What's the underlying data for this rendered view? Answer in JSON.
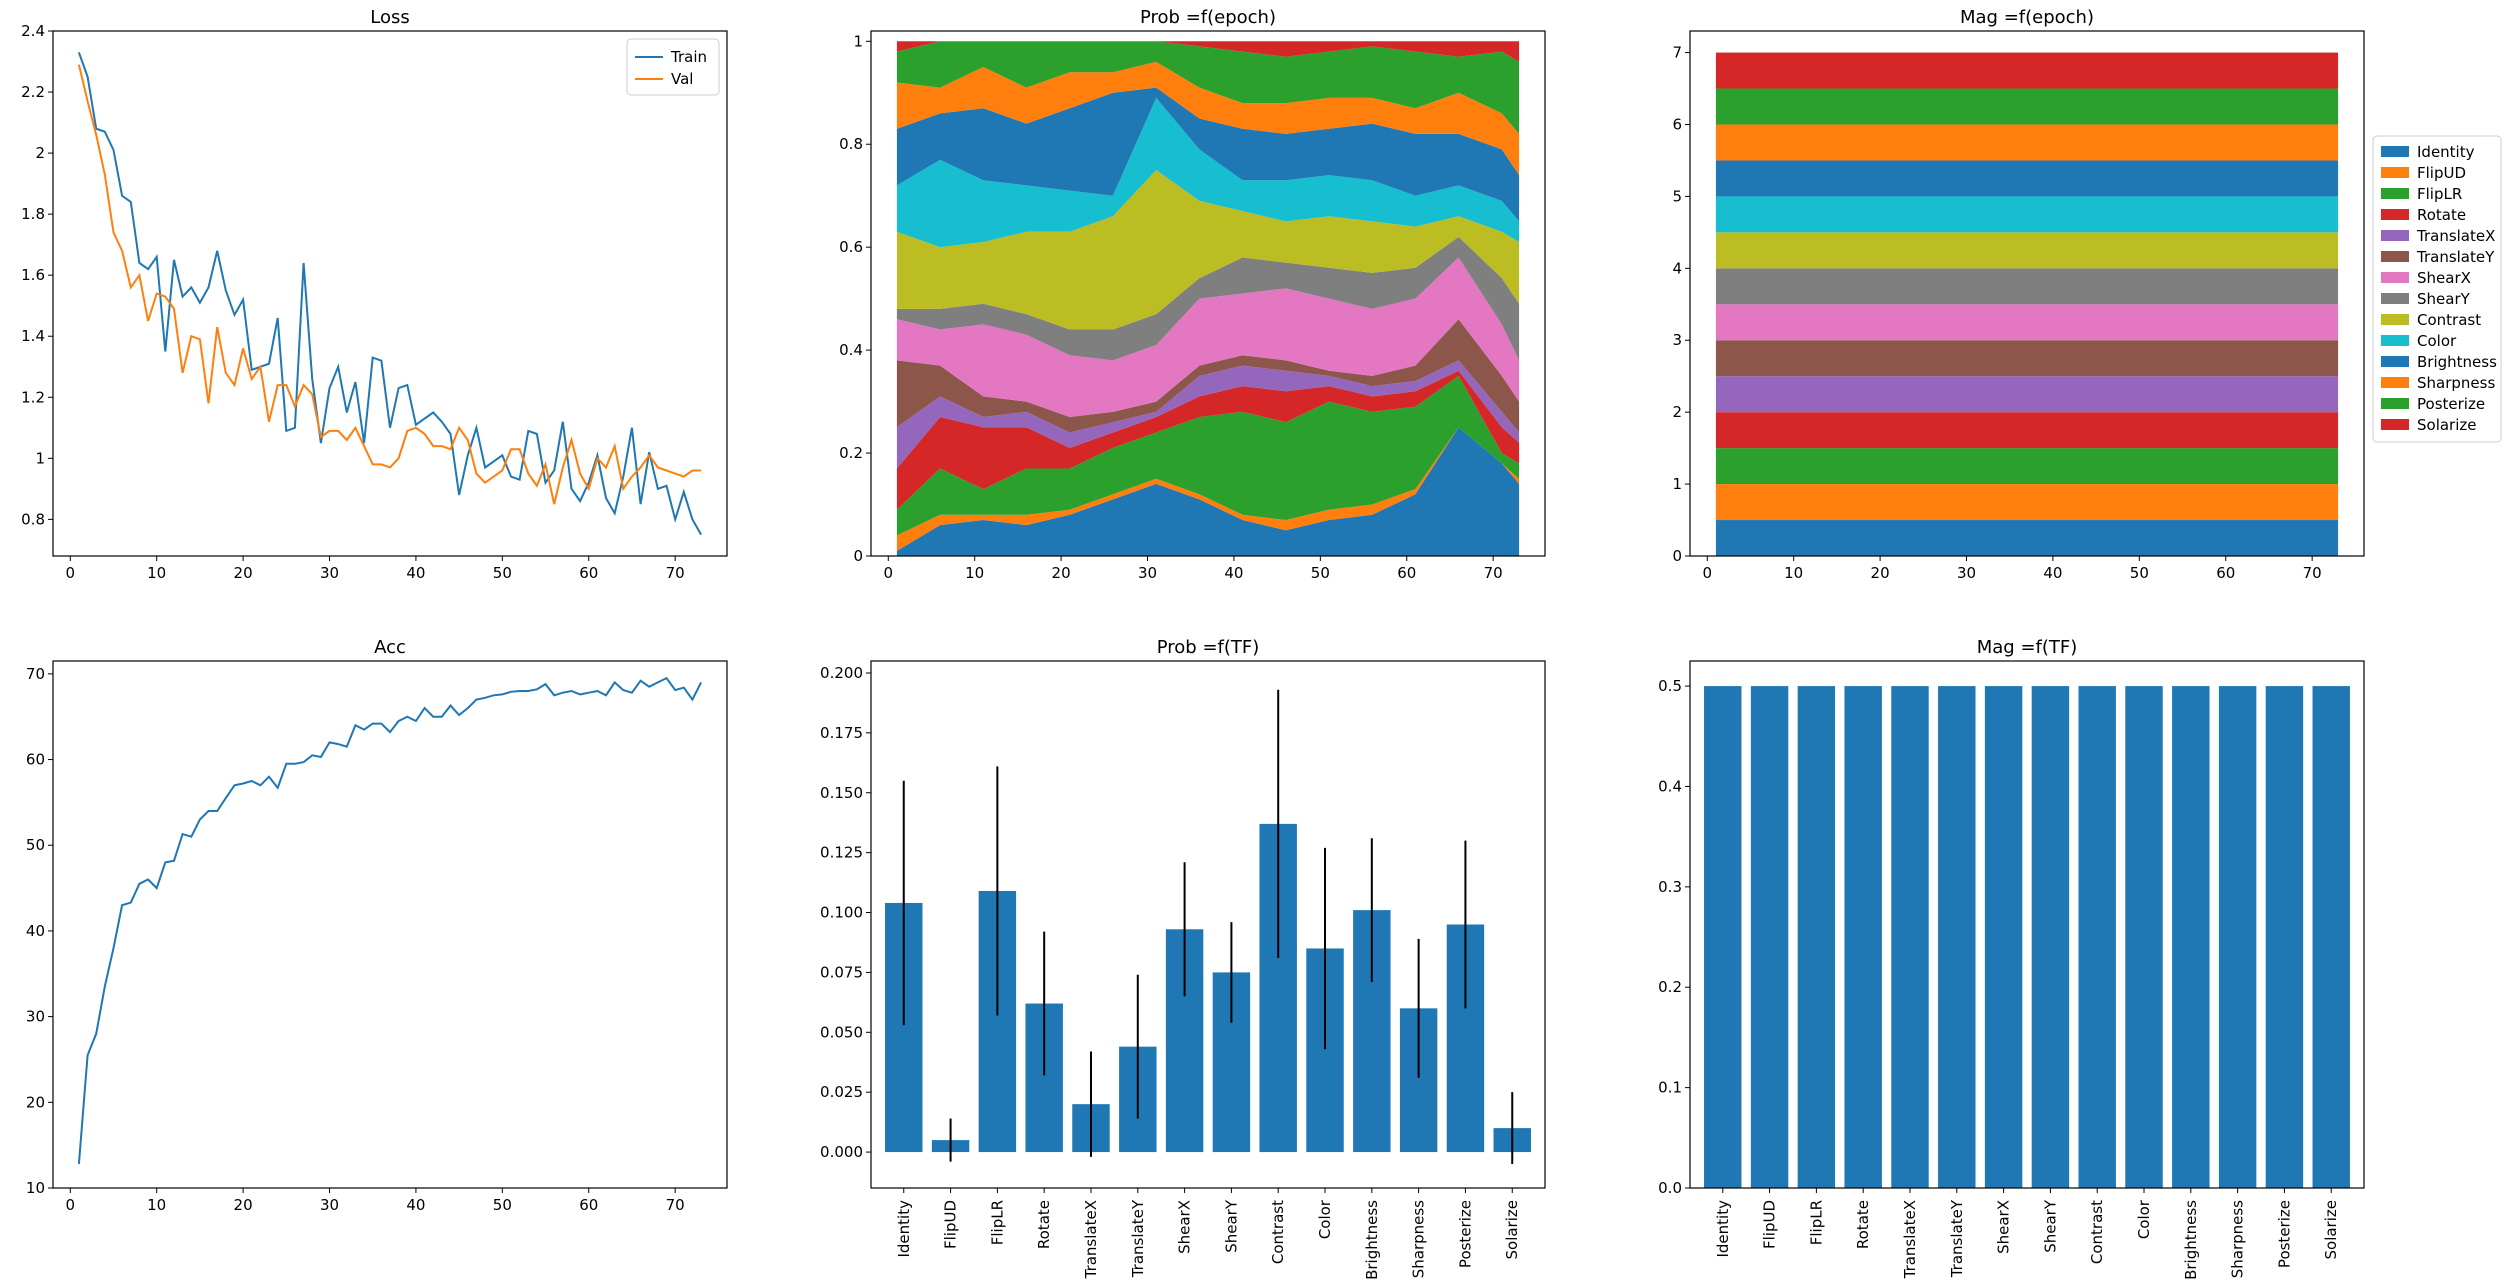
{
  "chart_data": [
    {
      "type": "line",
      "title": "Loss",
      "xlim": [
        -2,
        76
      ],
      "ylim": [
        0.68,
        2.4
      ],
      "xticks": [
        0,
        10,
        20,
        30,
        40,
        50,
        60,
        70
      ],
      "yticks": [
        0.8,
        1.0,
        1.2,
        1.4,
        1.6,
        1.8,
        2.0,
        2.2,
        2.4
      ],
      "legend": "top-right",
      "series": [
        {
          "name": "Train",
          "color": "#1f77b4",
          "x_start": 1,
          "values": [
            2.33,
            2.25,
            2.08,
            2.07,
            2.01,
            1.86,
            1.84,
            1.64,
            1.62,
            1.66,
            1.35,
            1.65,
            1.53,
            1.56,
            1.51,
            1.56,
            1.68,
            1.55,
            1.47,
            1.52,
            1.29,
            1.3,
            1.31,
            1.46,
            1.09,
            1.1,
            1.64,
            1.26,
            1.05,
            1.23,
            1.3,
            1.15,
            1.25,
            1.05,
            1.33,
            1.32,
            1.1,
            1.23,
            1.24,
            1.11,
            1.13,
            1.15,
            1.12,
            1.08,
            0.88,
            1.01,
            1.1,
            0.97,
            0.99,
            1.01,
            0.94,
            0.93,
            1.09,
            1.08,
            0.92,
            0.96,
            1.12,
            0.9,
            0.86,
            0.92,
            1.01,
            0.87,
            0.82,
            0.94,
            1.1,
            0.85,
            1.02,
            0.9,
            0.91,
            0.8,
            0.89,
            0.8,
            0.75
          ]
        },
        {
          "name": "Val",
          "color": "#ff7f0e",
          "x_start": 1,
          "values": [
            2.29,
            2.17,
            2.06,
            1.93,
            1.74,
            1.68,
            1.56,
            1.6,
            1.45,
            1.54,
            1.53,
            1.49,
            1.28,
            1.4,
            1.39,
            1.18,
            1.43,
            1.28,
            1.24,
            1.36,
            1.26,
            1.3,
            1.12,
            1.24,
            1.24,
            1.17,
            1.24,
            1.21,
            1.07,
            1.09,
            1.09,
            1.06,
            1.1,
            1.04,
            0.98,
            0.98,
            0.97,
            1.0,
            1.09,
            1.1,
            1.08,
            1.04,
            1.04,
            1.03,
            1.1,
            1.06,
            0.95,
            0.92,
            0.94,
            0.96,
            1.03,
            1.03,
            0.95,
            0.91,
            0.98,
            0.85,
            0.97,
            1.06,
            0.95,
            0.9,
            1.0,
            0.97,
            1.04,
            0.9,
            0.94,
            0.97,
            1.01,
            0.97,
            0.96,
            0.95,
            0.94,
            0.96,
            0.96
          ]
        }
      ]
    },
    {
      "type": "area",
      "title": "Prob =f(epoch)",
      "xlim": [
        -2,
        76
      ],
      "ylim": [
        0,
        1.02
      ],
      "xticks": [
        0,
        10,
        20,
        30,
        40,
        50,
        60,
        70
      ],
      "yticks": [
        0.0,
        0.2,
        0.4,
        0.6,
        0.8,
        1.0
      ],
      "x": [
        1,
        6,
        11,
        16,
        21,
        26,
        31,
        36,
        41,
        46,
        51,
        56,
        61,
        66,
        71,
        73
      ],
      "stacked_upper_bounds": [
        [
          0.01,
          0.06,
          0.07,
          0.06,
          0.08,
          0.11,
          0.14,
          0.11,
          0.07,
          0.05,
          0.07,
          0.08,
          0.12,
          0.25,
          0.18,
          0.14
        ],
        [
          0.04,
          0.08,
          0.08,
          0.08,
          0.09,
          0.12,
          0.15,
          0.12,
          0.08,
          0.07,
          0.09,
          0.1,
          0.13,
          0.25,
          0.18,
          0.15
        ],
        [
          0.09,
          0.17,
          0.13,
          0.17,
          0.17,
          0.21,
          0.24,
          0.27,
          0.28,
          0.26,
          0.3,
          0.28,
          0.29,
          0.35,
          0.2,
          0.18
        ],
        [
          0.17,
          0.27,
          0.25,
          0.25,
          0.21,
          0.24,
          0.27,
          0.31,
          0.33,
          0.32,
          0.33,
          0.31,
          0.32,
          0.36,
          0.25,
          0.22
        ],
        [
          0.25,
          0.31,
          0.27,
          0.28,
          0.24,
          0.26,
          0.28,
          0.35,
          0.37,
          0.36,
          0.35,
          0.33,
          0.34,
          0.38,
          0.28,
          0.24
        ],
        [
          0.38,
          0.37,
          0.31,
          0.3,
          0.27,
          0.28,
          0.3,
          0.37,
          0.39,
          0.38,
          0.36,
          0.35,
          0.37,
          0.46,
          0.35,
          0.3
        ],
        [
          0.46,
          0.44,
          0.45,
          0.43,
          0.39,
          0.38,
          0.41,
          0.5,
          0.51,
          0.52,
          0.5,
          0.48,
          0.5,
          0.58,
          0.45,
          0.38
        ],
        [
          0.48,
          0.48,
          0.49,
          0.47,
          0.44,
          0.44,
          0.47,
          0.54,
          0.58,
          0.57,
          0.56,
          0.55,
          0.56,
          0.62,
          0.54,
          0.49
        ],
        [
          0.63,
          0.6,
          0.61,
          0.63,
          0.63,
          0.66,
          0.75,
          0.69,
          0.67,
          0.65,
          0.66,
          0.65,
          0.64,
          0.66,
          0.63,
          0.61
        ],
        [
          0.72,
          0.77,
          0.73,
          0.72,
          0.71,
          0.7,
          0.89,
          0.79,
          0.73,
          0.73,
          0.74,
          0.73,
          0.7,
          0.72,
          0.69,
          0.65
        ],
        [
          0.83,
          0.86,
          0.87,
          0.84,
          0.87,
          0.9,
          0.91,
          0.85,
          0.83,
          0.82,
          0.83,
          0.84,
          0.82,
          0.82,
          0.79,
          0.74
        ],
        [
          0.92,
          0.91,
          0.95,
          0.91,
          0.94,
          0.94,
          0.96,
          0.91,
          0.88,
          0.88,
          0.89,
          0.89,
          0.87,
          0.9,
          0.86,
          0.82
        ],
        [
          0.98,
          1.0,
          1.0,
          1.0,
          1.0,
          1.0,
          1.0,
          0.99,
          0.98,
          0.97,
          0.98,
          0.99,
          0.98,
          0.97,
          0.98,
          0.96
        ],
        [
          1.0,
          1.0,
          1.0,
          1.0,
          1.0,
          1.0,
          1.0,
          1.0,
          1.0,
          1.0,
          1.0,
          1.0,
          1.0,
          1.0,
          1.0,
          1.0
        ]
      ]
    },
    {
      "type": "area",
      "title": "Mag =f(epoch)",
      "xlim": [
        -2,
        76
      ],
      "ylim": [
        0,
        7.3
      ],
      "xticks": [
        0,
        10,
        20,
        30,
        40,
        50,
        60,
        70
      ],
      "yticks": [
        0,
        1,
        2,
        3,
        4,
        5,
        6,
        7
      ],
      "x_range": [
        1,
        73
      ],
      "values_per_tf": 0.5,
      "legend": "outside-right"
    },
    {
      "type": "bar",
      "title": "Prob =f(TF)",
      "ylim": [
        -0.015,
        0.205
      ],
      "yticks": [
        0.0,
        0.025,
        0.05,
        0.075,
        0.1,
        0.125,
        0.15,
        0.175,
        0.2
      ],
      "yticklabels": [
        "0.000",
        "0.025",
        "0.050",
        "0.075",
        "0.100",
        "0.125",
        "0.150",
        "0.175",
        "0.200"
      ],
      "values": [
        0.104,
        0.005,
        0.109,
        0.062,
        0.02,
        0.044,
        0.093,
        0.075,
        0.137,
        0.085,
        0.101,
        0.06,
        0.095,
        0.01
      ],
      "errors": [
        0.051,
        0.009,
        0.052,
        0.03,
        0.022,
        0.03,
        0.028,
        0.021,
        0.056,
        0.042,
        0.03,
        0.029,
        0.035,
        0.015
      ],
      "color": "#1f77b4"
    },
    {
      "type": "bar",
      "title": "Mag =f(TF)",
      "ylim": [
        0,
        0.525
      ],
      "yticks": [
        0.0,
        0.1,
        0.2,
        0.3,
        0.4,
        0.5
      ],
      "yticklabels": [
        "0.0",
        "0.1",
        "0.2",
        "0.3",
        "0.4",
        "0.5"
      ],
      "values": [
        0.5,
        0.5,
        0.5,
        0.5,
        0.5,
        0.5,
        0.5,
        0.5,
        0.5,
        0.5,
        0.5,
        0.5,
        0.5,
        0.5
      ],
      "color": "#1f77b4"
    },
    {
      "type": "line",
      "title": "Acc",
      "xlim": [
        -2,
        76
      ],
      "ylim": [
        10,
        71.5
      ],
      "xticks": [
        0,
        10,
        20,
        30,
        40,
        50,
        60,
        70
      ],
      "yticks": [
        10,
        20,
        30,
        40,
        50,
        60,
        70
      ],
      "series": [
        {
          "color": "#1f77b4",
          "x_start": 1,
          "values": [
            12.8,
            25.5,
            28.0,
            33.5,
            38.0,
            43.0,
            43.3,
            45.5,
            46.0,
            45.0,
            48.0,
            48.2,
            51.3,
            51.0,
            53.0,
            54.0,
            54.0,
            55.5,
            57.0,
            57.2,
            57.5,
            57.0,
            58.0,
            56.7,
            59.5,
            59.5,
            59.7,
            60.5,
            60.3,
            62.0,
            61.8,
            61.5,
            64.0,
            63.5,
            64.2,
            64.2,
            63.2,
            64.5,
            65.0,
            64.5,
            66.0,
            65.0,
            65.0,
            66.3,
            65.2,
            66.0,
            67.0,
            67.2,
            67.5,
            67.6,
            67.9,
            68.0,
            68.0,
            68.2,
            68.8,
            67.5,
            67.8,
            68.0,
            67.6,
            67.8,
            68.0,
            67.5,
            69.0,
            68.1,
            67.8,
            69.2,
            68.5,
            69.0,
            69.5,
            68.1,
            68.4,
            67.0,
            69.0
          ]
        }
      ]
    }
  ],
  "tf_names": [
    "Identity",
    "FlipUD",
    "FlipLR",
    "Rotate",
    "TranslateX",
    "TranslateY",
    "ShearX",
    "ShearY",
    "Contrast",
    "Color",
    "Brightness",
    "Sharpness",
    "Posterize",
    "Solarize"
  ],
  "tf_colors": [
    "#1f77b4",
    "#ff7f0e",
    "#2ca02c",
    "#d62728",
    "#9467bd",
    "#8c564b",
    "#e377c2",
    "#7f7f7f",
    "#bcbd22",
    "#17becf",
    "#1f77b4",
    "#ff7f0e",
    "#2ca02c",
    "#d62728"
  ]
}
